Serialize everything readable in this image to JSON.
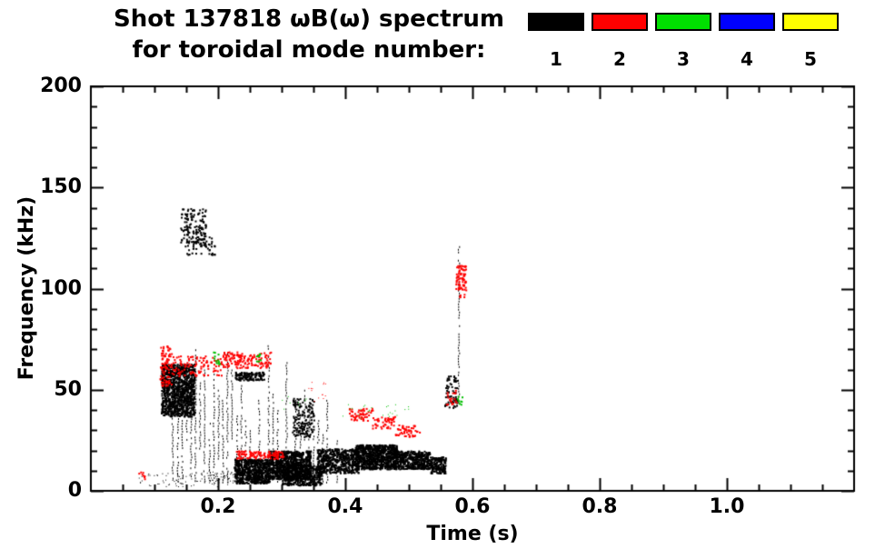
{
  "header": {
    "title_line1": "Shot 137818 ωB(ω) spectrum",
    "title_line2": "for toroidal mode number:"
  },
  "legend": {
    "items": [
      {
        "label": "1",
        "color": "#000000"
      },
      {
        "label": "2",
        "color": "#ff0000"
      },
      {
        "label": "3",
        "color": "#00e000"
      },
      {
        "label": "4",
        "color": "#0000ff"
      },
      {
        "label": "5",
        "color": "#ffff00"
      }
    ]
  },
  "chart_data": {
    "type": "scatter",
    "title": "Shot 137818 ωB(ω) spectrum for toroidal mode number: 1 2 3 4 5",
    "xlabel": "Time (s)",
    "ylabel": "Frequency (kHz)",
    "xlim": [
      0.0,
      1.2
    ],
    "ylim": [
      0,
      200
    ],
    "grid": false,
    "legend_position": "top-right",
    "xticks": {
      "major": [
        0.2,
        0.4,
        0.6,
        0.8,
        1.0
      ],
      "labels": [
        "0.2",
        "0.4",
        "0.6",
        "0.8",
        "1.0"
      ],
      "minor_step": 0.05
    },
    "yticks": {
      "major": [
        0,
        50,
        100,
        150,
        200
      ],
      "labels": [
        "0",
        "50",
        "100",
        "150",
        "200"
      ],
      "minor_step": 10
    },
    "mode_colors": {
      "1": "#000000",
      "2": "#ff0000",
      "3": "#00e000",
      "4": "#0000ff",
      "5": "#ffff00"
    },
    "clusters": [
      {
        "color": "#000000",
        "t0": 0.11,
        "t1": 0.162,
        "f0": 37,
        "f1": 63,
        "n": 1100,
        "size": 2
      },
      {
        "color": "#000000",
        "t0": 0.14,
        "t1": 0.18,
        "f0": 121,
        "f1": 140,
        "n": 150,
        "size": 2
      },
      {
        "color": "#000000",
        "t0": 0.15,
        "t1": 0.195,
        "f0": 117,
        "f1": 126,
        "n": 45,
        "size": 2
      },
      {
        "color": "#000000",
        "t0": 0.226,
        "t1": 0.272,
        "f0": 55,
        "f1": 59,
        "n": 130,
        "size": 2
      },
      {
        "color": "#000000",
        "t0": 0.225,
        "t1": 0.28,
        "f0": 4,
        "f1": 16,
        "n": 650,
        "size": 2
      },
      {
        "color": "#000000",
        "t0": 0.28,
        "t1": 0.345,
        "f0": 6,
        "f1": 20,
        "n": 850,
        "size": 2
      },
      {
        "color": "#000000",
        "t0": 0.3,
        "t1": 0.362,
        "f0": 3,
        "f1": 13,
        "n": 420,
        "size": 2
      },
      {
        "color": "#000000",
        "t0": 0.315,
        "t1": 0.35,
        "f0": 27,
        "f1": 46,
        "n": 160,
        "size": 2
      },
      {
        "color": "#000000",
        "t0": 0.355,
        "t1": 0.42,
        "f0": 9,
        "f1": 21,
        "n": 520,
        "size": 2
      },
      {
        "color": "#000000",
        "t0": 0.415,
        "t1": 0.48,
        "f0": 11,
        "f1": 23,
        "n": 850,
        "size": 2
      },
      {
        "color": "#000000",
        "t0": 0.48,
        "t1": 0.532,
        "f0": 11,
        "f1": 20,
        "n": 420,
        "size": 2
      },
      {
        "color": "#000000",
        "t0": 0.532,
        "t1": 0.557,
        "f0": 9,
        "f1": 17,
        "n": 170,
        "size": 2
      },
      {
        "color": "#000000",
        "t0": 0.075,
        "t1": 0.2,
        "f0": 2,
        "f1": 9,
        "n": 70,
        "size": 1
      },
      {
        "color": "#000000",
        "t0": 0.185,
        "t1": 0.225,
        "f0": 3,
        "f1": 10,
        "n": 45,
        "size": 1
      },
      {
        "color": "#000000",
        "t0": 0.555,
        "t1": 0.575,
        "f0": 41,
        "f1": 58,
        "n": 70,
        "size": 2
      },
      {
        "color": "#ff0000",
        "t0": 0.108,
        "t1": 0.126,
        "f0": 52,
        "f1": 72,
        "n": 90,
        "size": 2
      },
      {
        "color": "#ff0000",
        "t0": 0.126,
        "t1": 0.205,
        "f0": 57,
        "f1": 67,
        "n": 110,
        "size": 2
      },
      {
        "color": "#ff0000",
        "t0": 0.205,
        "t1": 0.282,
        "f0": 61,
        "f1": 69,
        "n": 150,
        "size": 2
      },
      {
        "color": "#ff0000",
        "t0": 0.228,
        "t1": 0.302,
        "f0": 16,
        "f1": 20,
        "n": 120,
        "size": 2
      },
      {
        "color": "#ff0000",
        "t0": 0.405,
        "t1": 0.442,
        "f0": 35,
        "f1": 41,
        "n": 55,
        "size": 2
      },
      {
        "color": "#ff0000",
        "t0": 0.442,
        "t1": 0.478,
        "f0": 31,
        "f1": 37,
        "n": 50,
        "size": 2
      },
      {
        "color": "#ff0000",
        "t0": 0.478,
        "t1": 0.516,
        "f0": 27,
        "f1": 33,
        "n": 50,
        "size": 2
      },
      {
        "color": "#ff0000",
        "t0": 0.573,
        "t1": 0.589,
        "f0": 96,
        "f1": 112,
        "n": 80,
        "size": 2
      },
      {
        "color": "#ff0000",
        "t0": 0.558,
        "t1": 0.574,
        "f0": 43,
        "f1": 50,
        "n": 20,
        "size": 2
      },
      {
        "color": "#ff0000",
        "t0": 0.074,
        "t1": 0.084,
        "f0": 6,
        "f1": 10,
        "n": 8,
        "size": 2
      },
      {
        "color": "#ff0000",
        "t0": 0.33,
        "t1": 0.37,
        "f0": 44,
        "f1": 54,
        "n": 14,
        "size": 1
      },
      {
        "color": "#00c000",
        "t0": 0.192,
        "t1": 0.202,
        "f0": 63,
        "f1": 69,
        "n": 12,
        "size": 2
      },
      {
        "color": "#00c000",
        "t0": 0.256,
        "t1": 0.268,
        "f0": 64,
        "f1": 68,
        "n": 10,
        "size": 2
      },
      {
        "color": "#00c000",
        "t0": 0.395,
        "t1": 0.5,
        "f0": 36,
        "f1": 43,
        "n": 26,
        "size": 1
      },
      {
        "color": "#00c000",
        "t0": 0.575,
        "t1": 0.583,
        "f0": 43,
        "f1": 47,
        "n": 8,
        "size": 2
      },
      {
        "color": "#00c000",
        "t0": 0.3,
        "t1": 0.345,
        "f0": 40,
        "f1": 50,
        "n": 8,
        "size": 1
      }
    ],
    "streaks": [
      {
        "t": 0.128,
        "f0": 4,
        "f1": 55
      },
      {
        "t": 0.136,
        "f0": 4,
        "f1": 40
      },
      {
        "t": 0.143,
        "f0": 4,
        "f1": 62
      },
      {
        "t": 0.15,
        "f0": 25,
        "f1": 58
      },
      {
        "t": 0.157,
        "f0": 4,
        "f1": 48
      },
      {
        "t": 0.164,
        "f0": 4,
        "f1": 70
      },
      {
        "t": 0.171,
        "f0": 20,
        "f1": 55
      },
      {
        "t": 0.178,
        "f0": 4,
        "f1": 60
      },
      {
        "t": 0.186,
        "f0": 4,
        "f1": 35
      },
      {
        "t": 0.193,
        "f0": 4,
        "f1": 58
      },
      {
        "t": 0.2,
        "f0": 15,
        "f1": 50
      },
      {
        "t": 0.207,
        "f0": 4,
        "f1": 45
      },
      {
        "t": 0.214,
        "f0": 4,
        "f1": 68
      },
      {
        "t": 0.221,
        "f0": 25,
        "f1": 60
      },
      {
        "t": 0.229,
        "f0": 4,
        "f1": 40
      },
      {
        "t": 0.236,
        "f0": 4,
        "f1": 55
      },
      {
        "t": 0.243,
        "f0": 10,
        "f1": 35
      },
      {
        "t": 0.25,
        "f0": 4,
        "f1": 30
      },
      {
        "t": 0.264,
        "f0": 4,
        "f1": 45
      },
      {
        "t": 0.279,
        "f0": 4,
        "f1": 72
      },
      {
        "t": 0.286,
        "f0": 20,
        "f1": 48
      },
      {
        "t": 0.293,
        "f0": 4,
        "f1": 40
      },
      {
        "t": 0.307,
        "f0": 4,
        "f1": 65
      },
      {
        "t": 0.321,
        "f0": 10,
        "f1": 45
      },
      {
        "t": 0.329,
        "f0": 4,
        "f1": 38
      },
      {
        "t": 0.336,
        "f0": 25,
        "f1": 50
      },
      {
        "t": 0.343,
        "f0": 4,
        "f1": 42
      },
      {
        "t": 0.35,
        "f0": 8,
        "f1": 30
      },
      {
        "t": 0.357,
        "f0": 4,
        "f1": 35
      },
      {
        "t": 0.364,
        "f0": 4,
        "f1": 28
      },
      {
        "t": 0.371,
        "f0": 4,
        "f1": 45
      },
      {
        "t": 0.386,
        "f0": 4,
        "f1": 25
      },
      {
        "t": 0.578,
        "f0": 44,
        "f1": 121
      }
    ]
  },
  "plot": {
    "seed": 42
  }
}
